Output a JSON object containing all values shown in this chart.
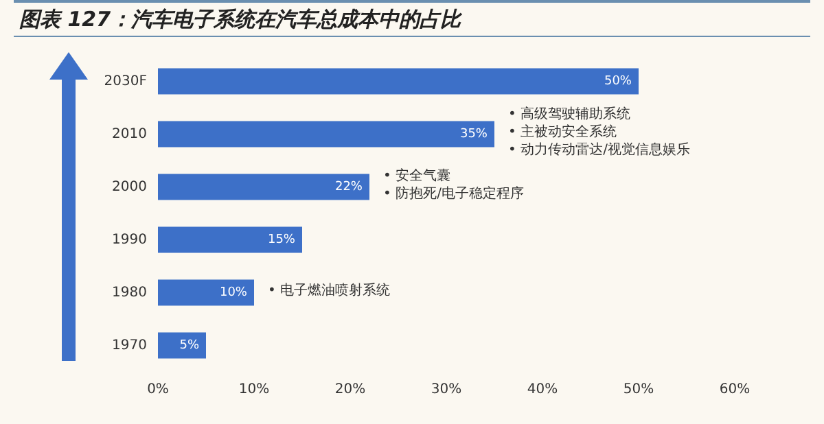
{
  "chart_data": {
    "type": "bar",
    "orientation": "horizontal",
    "title": "图表 127：汽车电子系统在汽车总成本中的占比",
    "categories": [
      "2030F",
      "2010",
      "2000",
      "1990",
      "1980",
      "1970"
    ],
    "values": [
      50,
      35,
      22,
      15,
      10,
      5
    ],
    "value_labels": [
      "50%",
      "35%",
      "22%",
      "15%",
      "10%",
      "5%"
    ],
    "color": "#3d70c8",
    "xlim": [
      0,
      60
    ],
    "xticks": [
      {
        "value": 0,
        "label": "0%"
      },
      {
        "value": 10,
        "label": "10%"
      },
      {
        "value": 20,
        "label": "20%"
      },
      {
        "value": 30,
        "label": "30%"
      },
      {
        "value": 40,
        "label": "40%"
      },
      {
        "value": 50,
        "label": "50%"
      },
      {
        "value": 60,
        "label": "60%"
      }
    ],
    "annotations": [
      {
        "text": "• 高级驾驶辅助系统",
        "x": 35,
        "y": "2010"
      },
      {
        "text": "• 主被动安全系统",
        "x": 35,
        "y": "2010"
      },
      {
        "text": "• 动力传动雷达/视觉信息娱乐",
        "x": 35,
        "y": "2010"
      },
      {
        "text": "• 安全气囊",
        "x": 22,
        "y": "2000"
      },
      {
        "text": "• 防抱死/电子稳定程序",
        "x": 22,
        "y": "2000"
      },
      {
        "text": "• 电子燃油喷射系统",
        "x": 10,
        "y": "1980"
      }
    ]
  }
}
